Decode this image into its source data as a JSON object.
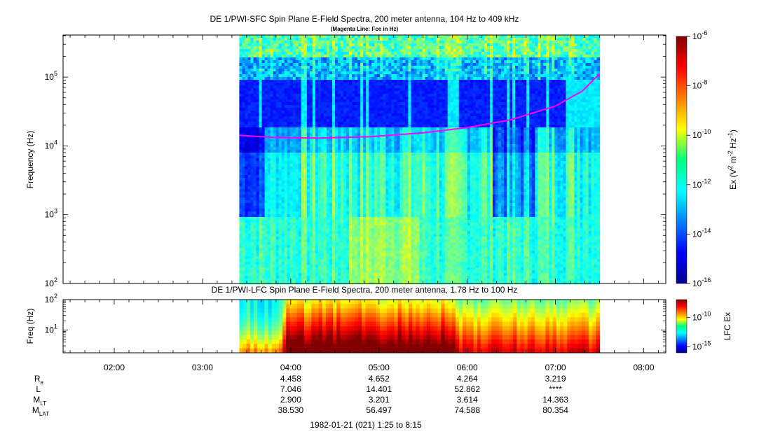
{
  "chart_data": [
    {
      "type": "heatmap",
      "title": "DE 1/PWI-SFC  Spin Plane E-Field Spectra, 200 meter antenna, 104 Hz to 409 kHz",
      "subtitle": "(Magenta Line: Fce in Hz)",
      "ylabel": "Frequency (Hz)",
      "yscale": "log",
      "ylim": [
        100,
        409000
      ],
      "y_ticks": [
        {
          "value": 100,
          "mantissa": "10",
          "exp": "2"
        },
        {
          "value": 1000,
          "mantissa": "10",
          "exp": "3"
        },
        {
          "value": 10000,
          "mantissa": "10",
          "exp": "4"
        },
        {
          "value": 100000,
          "mantissa": "10",
          "exp": "5"
        }
      ],
      "x_range_hours": [
        1.42,
        8.25
      ],
      "data_coverage_hours": [
        3.417,
        7.5
      ],
      "colorbar": {
        "label_parts": [
          "Ex (V",
          "2",
          " m",
          "-2",
          " Hz",
          "-1",
          ")"
        ],
        "scale": "log",
        "range": [
          1e-16,
          1e-06
        ],
        "ticks": [
          {
            "value": 1e-06,
            "mantissa": "10",
            "exp": "-6"
          },
          {
            "value": 1e-08,
            "mantissa": "10",
            "exp": "-8"
          },
          {
            "value": 1e-10,
            "mantissa": "10",
            "exp": "-10"
          },
          {
            "value": 1e-12,
            "mantissa": "10",
            "exp": "-12"
          },
          {
            "value": 1e-14,
            "mantissa": "10",
            "exp": "-14"
          },
          {
            "value": 1e-16,
            "mantissa": "10",
            "exp": "-16"
          }
        ]
      },
      "fce_line": {
        "name": "Fce",
        "color": "#ff00ff",
        "points": [
          [
            3.42,
            14200
          ],
          [
            3.8,
            13300
          ],
          [
            4.3,
            13000
          ],
          [
            4.9,
            13600
          ],
          [
            5.5,
            15500
          ],
          [
            6.0,
            18500
          ],
          [
            6.5,
            24000
          ],
          [
            7.0,
            38000
          ],
          [
            7.3,
            62000
          ],
          [
            7.5,
            112000
          ]
        ]
      }
    },
    {
      "type": "heatmap",
      "title": "DE 1/PWI-LFC  Spin Plane E-Field Spectra, 200 meter antenna, 1.78 Hz to 100 Hz",
      "ylabel": "Freq (Hz)",
      "yscale": "log",
      "ylim": [
        1.78,
        100
      ],
      "y_ticks": [
        {
          "value": 10,
          "mantissa": "10",
          "exp": "1"
        },
        {
          "value": 100,
          "mantissa": "10",
          "exp": "2"
        }
      ],
      "colorbar": {
        "label": "LFC Ex",
        "scale": "log",
        "range": [
          1e-16,
          1e-07
        ],
        "ticks": [
          {
            "value": 1e-10,
            "mantissa": "10",
            "exp": "-10"
          },
          {
            "value": 1e-15,
            "mantissa": "10",
            "exp": "-15"
          }
        ]
      }
    }
  ],
  "time_axis": {
    "ticks": [
      {
        "hour": 2,
        "label": "02:00"
      },
      {
        "hour": 3,
        "label": "03:00"
      },
      {
        "hour": 4,
        "label": "04:00"
      },
      {
        "hour": 5,
        "label": "05:00"
      },
      {
        "hour": 6,
        "label": "06:00"
      },
      {
        "hour": 7,
        "label": "07:00"
      },
      {
        "hour": 8,
        "label": "08:00"
      }
    ],
    "rows": [
      {
        "label": "R",
        "sub": "e",
        "values": [
          "4.458",
          "4.652",
          "4.264",
          "3.219"
        ]
      },
      {
        "label": "L",
        "sub": "",
        "values": [
          "7.046",
          "14.401",
          "52.862",
          "****"
        ]
      },
      {
        "label": "M",
        "sub": "LT",
        "values": [
          "2.900",
          "3.201",
          "3.614",
          "14.363"
        ]
      },
      {
        "label": "M",
        "sub": "LAT",
        "values": [
          "38.530",
          "56.497",
          "74.588",
          "80.354"
        ]
      }
    ],
    "value_hours": [
      4,
      5,
      6,
      7
    ],
    "footer": "1982-01-21 (021) 1:25 to 8:15"
  }
}
